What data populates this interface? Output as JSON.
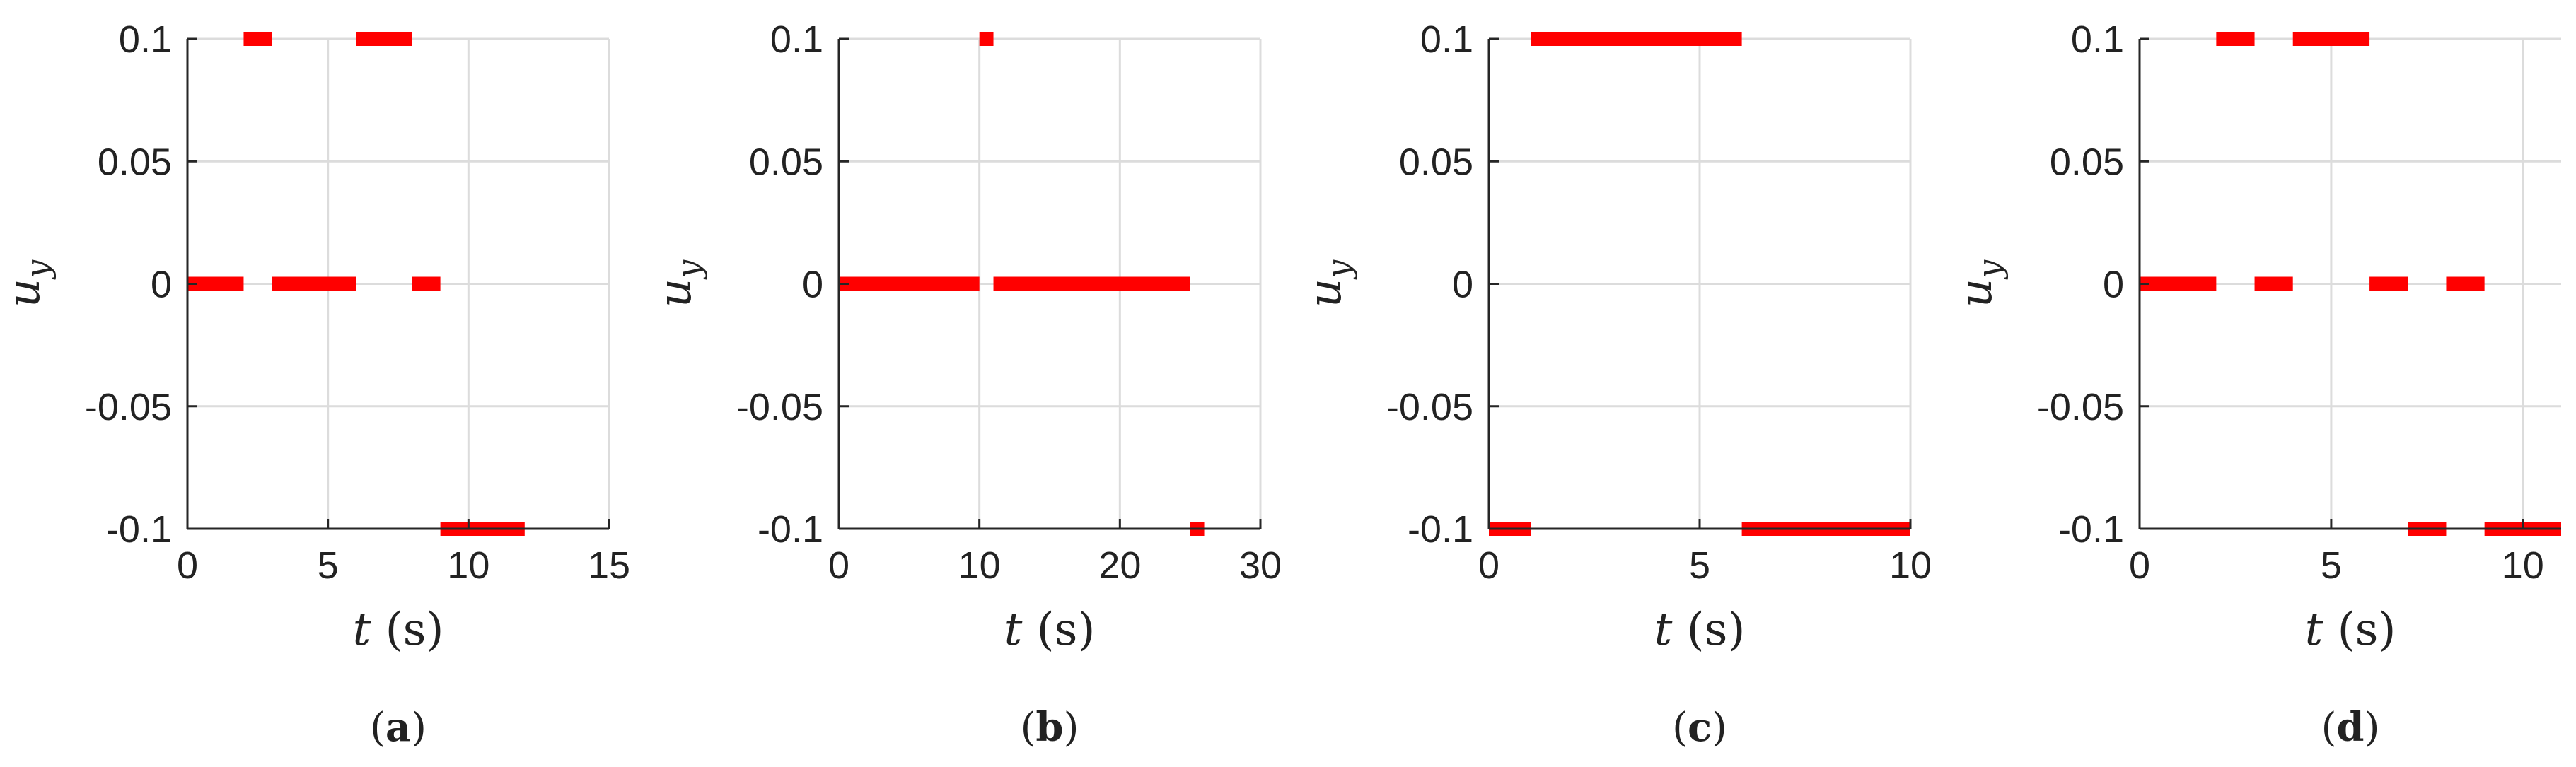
{
  "chart_data": [
    {
      "type": "line",
      "panel_label": "a",
      "xlabel": "t",
      "xlabel_unit": "(s)",
      "ylabel": "u",
      "ylabel_sub": "y",
      "xlim": [
        0,
        15
      ],
      "ylim": [
        -0.1,
        0.1
      ],
      "xticks": [
        0,
        5,
        10,
        15
      ],
      "xtick_labels": [
        "0",
        "5",
        "10",
        "15"
      ],
      "yticks": [
        -0.1,
        -0.05,
        0,
        0.05,
        0.1
      ],
      "ytick_labels": [
        "-0.1",
        "-0.05",
        "0",
        "0.05",
        "0.1"
      ],
      "grid": true,
      "color": "#ff0000",
      "segments": [
        {
          "x": [
            0,
            2
          ],
          "y": 0
        },
        {
          "x": [
            2,
            3
          ],
          "y": 0.1
        },
        {
          "x": [
            3,
            6
          ],
          "y": 0
        },
        {
          "x": [
            6,
            8
          ],
          "y": 0.1
        },
        {
          "x": [
            8,
            9
          ],
          "y": 0
        },
        {
          "x": [
            9,
            12
          ],
          "y": -0.1
        }
      ]
    },
    {
      "type": "line",
      "panel_label": "b",
      "xlabel": "t",
      "xlabel_unit": "(s)",
      "ylabel": "u",
      "ylabel_sub": "y",
      "xlim": [
        0,
        30
      ],
      "ylim": [
        -0.1,
        0.1
      ],
      "xticks": [
        0,
        10,
        20,
        30
      ],
      "xtick_labels": [
        "0",
        "10",
        "20",
        "30"
      ],
      "yticks": [
        -0.1,
        -0.05,
        0,
        0.05,
        0.1
      ],
      "ytick_labels": [
        "-0.1",
        "-0.05",
        "0",
        "0.05",
        "0.1"
      ],
      "grid": true,
      "color": "#ff0000",
      "segments": [
        {
          "x": [
            0,
            10
          ],
          "y": 0
        },
        {
          "x": [
            10,
            11
          ],
          "y": 0.1
        },
        {
          "x": [
            11,
            25
          ],
          "y": 0
        },
        {
          "x": [
            25,
            26
          ],
          "y": -0.1
        }
      ]
    },
    {
      "type": "line",
      "panel_label": "c",
      "xlabel": "t",
      "xlabel_unit": "(s)",
      "ylabel": "u",
      "ylabel_sub": "y",
      "xlim": [
        0,
        10
      ],
      "ylim": [
        -0.1,
        0.1
      ],
      "xticks": [
        0,
        5,
        10
      ],
      "xtick_labels": [
        "0",
        "5",
        "10"
      ],
      "yticks": [
        -0.1,
        -0.05,
        0,
        0.05,
        0.1
      ],
      "ytick_labels": [
        "-0.1",
        "-0.05",
        "0",
        "0.05",
        "0.1"
      ],
      "grid": true,
      "color": "#ff0000",
      "segments": [
        {
          "x": [
            0,
            1
          ],
          "y": -0.1
        },
        {
          "x": [
            1,
            6
          ],
          "y": 0.1
        },
        {
          "x": [
            6,
            10
          ],
          "y": -0.1
        }
      ]
    },
    {
      "type": "line",
      "panel_label": "d",
      "xlabel": "t",
      "xlabel_unit": "(s)",
      "ylabel": "u",
      "ylabel_sub": "y",
      "xlim": [
        0,
        11
      ],
      "ylim": [
        -0.1,
        0.1
      ],
      "xticks": [
        0,
        5,
        10
      ],
      "xtick_labels": [
        "0",
        "5",
        "10"
      ],
      "yticks": [
        -0.1,
        -0.05,
        0,
        0.05,
        0.1
      ],
      "ytick_labels": [
        "-0.1",
        "-0.05",
        "0",
        "0.05",
        "0.1"
      ],
      "grid": true,
      "color": "#ff0000",
      "segments": [
        {
          "x": [
            0,
            2
          ],
          "y": 0
        },
        {
          "x": [
            2,
            3
          ],
          "y": 0.1
        },
        {
          "x": [
            3,
            4
          ],
          "y": 0
        },
        {
          "x": [
            4,
            6
          ],
          "y": 0.1
        },
        {
          "x": [
            6,
            7
          ],
          "y": 0
        },
        {
          "x": [
            7,
            8
          ],
          "y": -0.1
        },
        {
          "x": [
            8,
            9
          ],
          "y": 0
        },
        {
          "x": [
            9,
            11
          ],
          "y": -0.1
        }
      ]
    }
  ]
}
